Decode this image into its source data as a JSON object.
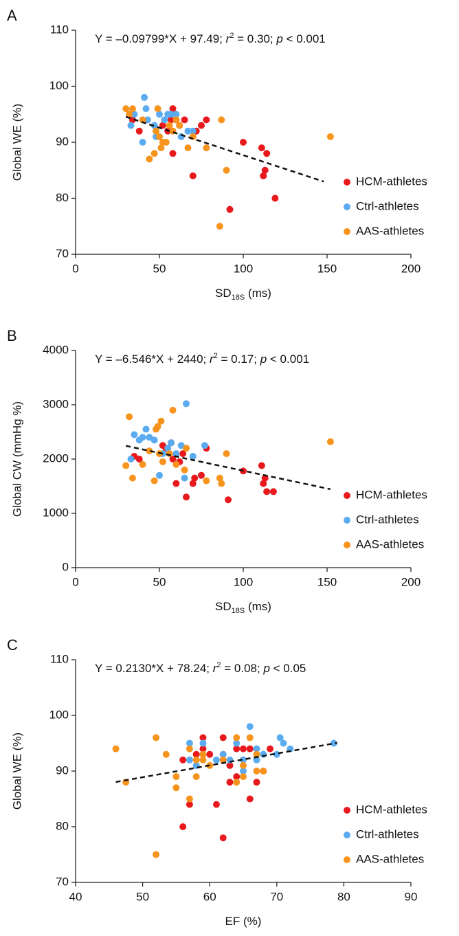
{
  "chart_data": [
    {
      "type": "scatter",
      "panel_label": "A",
      "equation_parts": [
        "Y = –0.09799*X + 97.49; ",
        "r",
        "2",
        " = 0.30; ",
        "p",
        " < 0.001"
      ],
      "xlabel_parts": [
        "SD",
        "18S",
        " (ms)"
      ],
      "ylabel": "Global WE (%)",
      "xlim": [
        0,
        200
      ],
      "ylim": [
        70,
        110
      ],
      "xticks": [
        0,
        50,
        100,
        150,
        200
      ],
      "yticks": [
        70,
        80,
        90,
        100,
        110
      ],
      "legend": "lower right",
      "trendline": {
        "slope": -0.09799,
        "intercept": 97.49,
        "x_range": [
          30,
          148
        ]
      },
      "series": [
        {
          "name": "HCM-athletes",
          "color": "#e8191c",
          "x": [
            34,
            38,
            52,
            55,
            57,
            58,
            58,
            60,
            62,
            65,
            70,
            72,
            75,
            78,
            92,
            100,
            111,
            112,
            113,
            114,
            119
          ],
          "values": [
            94,
            92,
            93,
            92,
            94,
            96,
            88,
            94,
            93,
            94,
            84,
            92,
            93,
            94,
            78,
            90,
            89,
            84,
            85,
            88,
            80
          ]
        },
        {
          "name": "Ctrl-athletes",
          "color": "#5aabf0",
          "x": [
            33,
            35,
            40,
            41,
            42,
            43,
            47,
            50,
            53,
            55,
            57,
            60,
            63,
            67,
            70,
            48
          ],
          "values": [
            93,
            95,
            90,
            98,
            96,
            94,
            93,
            95,
            94,
            95,
            95,
            95,
            91,
            92,
            92,
            91
          ]
        },
        {
          "name": "AAS-athletes",
          "color": "#f7941d",
          "x": [
            30,
            32,
            34,
            40,
            44,
            47,
            48,
            49,
            50,
            51,
            52,
            54,
            56,
            58,
            60,
            62,
            67,
            70,
            78,
            86,
            87,
            90,
            152
          ],
          "values": [
            96,
            95,
            96,
            94,
            87,
            88,
            92,
            96,
            91,
            89,
            90,
            90,
            93,
            92,
            94,
            93,
            89,
            91,
            89,
            75,
            94,
            85,
            91
          ]
        }
      ]
    },
    {
      "type": "scatter",
      "panel_label": "B",
      "equation_parts": [
        "Y = –6.546*X + 2440; ",
        "r",
        "2",
        " = 0.17; ",
        "p",
        " < 0.001"
      ],
      "xlabel_parts": [
        "SD",
        "18S",
        " (ms)"
      ],
      "ylabel": "Global CW (mmHg %)",
      "xlim": [
        0,
        200
      ],
      "ylim": [
        0,
        4000
      ],
      "xticks": [
        0,
        50,
        100,
        150,
        200
      ],
      "yticks": [
        0,
        1000,
        2000,
        3000,
        4000
      ],
      "legend": "lower right",
      "trendline": {
        "slope": -6.546,
        "intercept": 2440,
        "x_range": [
          30,
          152
        ]
      },
      "series": [
        {
          "name": "HCM-athletes",
          "color": "#e8191c",
          "x": [
            35,
            38,
            52,
            54,
            57,
            58,
            60,
            62,
            64,
            66,
            70,
            71,
            75,
            78,
            91,
            100,
            111,
            112,
            113,
            114,
            118
          ],
          "values": [
            2050,
            2000,
            2250,
            2200,
            2300,
            2000,
            1550,
            1950,
            2100,
            1300,
            1550,
            1650,
            1700,
            2200,
            1250,
            1780,
            1880,
            1550,
            1650,
            1400,
            1400
          ]
        },
        {
          "name": "Ctrl-athletes",
          "color": "#5aabf0",
          "x": [
            33,
            35,
            38,
            40,
            42,
            44,
            47,
            50,
            52,
            55,
            57,
            60,
            63,
            65,
            66,
            70,
            77
          ],
          "values": [
            2000,
            2450,
            2350,
            2400,
            2550,
            2400,
            2350,
            1700,
            2100,
            2200,
            2300,
            2100,
            2250,
            1650,
            3020,
            2050,
            2250
          ]
        },
        {
          "name": "AAS-athletes",
          "color": "#f7941d",
          "x": [
            30,
            32,
            34,
            40,
            44,
            47,
            48,
            49,
            50,
            51,
            52,
            56,
            58,
            60,
            65,
            66,
            78,
            86,
            87,
            90,
            152
          ],
          "values": [
            1880,
            2780,
            1650,
            1900,
            2150,
            1600,
            2550,
            2600,
            2100,
            2700,
            1950,
            2100,
            2900,
            1900,
            1800,
            2200,
            1600,
            1650,
            1550,
            2100,
            2320
          ]
        }
      ]
    },
    {
      "type": "scatter",
      "panel_label": "C",
      "equation_parts": [
        "Y = 0.2130*X + 78.24; ",
        "r",
        "2",
        " = 0.08; ",
        "p",
        " < 0.05"
      ],
      "xlabel_parts": [
        "EF (%)"
      ],
      "ylabel": "Global WE (%)",
      "xlim": [
        40,
        90
      ],
      "ylim": [
        70,
        110
      ],
      "xticks": [
        40,
        50,
        60,
        70,
        80,
        90
      ],
      "yticks": [
        70,
        80,
        90,
        100,
        110
      ],
      "legend": "lower right",
      "trendline": {
        "slope": 0.213,
        "intercept": 78.24,
        "x_range": [
          46,
          79
        ]
      },
      "series": [
        {
          "name": "HCM-athletes",
          "color": "#e8191c",
          "x": [
            56,
            56,
            57,
            58,
            59,
            59,
            60,
            61,
            62,
            62,
            62,
            63,
            63,
            64,
            64,
            65,
            66,
            66,
            67,
            68,
            69
          ],
          "values": [
            80,
            92,
            84,
            93,
            96,
            94,
            93,
            84,
            78,
            96,
            93,
            88,
            91,
            94,
            89,
            94,
            85,
            94,
            88,
            90,
            94
          ]
        },
        {
          "name": "Ctrl-athletes",
          "color": "#5aabf0",
          "x": [
            57,
            57,
            58,
            59,
            61,
            62,
            63,
            64,
            65,
            65,
            66,
            67,
            67,
            68,
            70,
            70.5,
            71,
            72,
            78.5
          ],
          "values": [
            95,
            92,
            91,
            95,
            92,
            93,
            92,
            95,
            90,
            92,
            98,
            94,
            92,
            93,
            93,
            96,
            95,
            94,
            95
          ]
        },
        {
          "name": "AAS-athletes",
          "color": "#f7941d",
          "x": [
            46,
            47.5,
            52,
            52,
            53.5,
            55,
            55,
            57,
            57,
            58,
            58,
            59,
            59,
            60,
            62,
            64,
            64,
            65,
            65,
            66,
            67,
            67,
            68
          ],
          "values": [
            94,
            88,
            75,
            96,
            93,
            89,
            87,
            85,
            94,
            89,
            92,
            93,
            92,
            91,
            92,
            96,
            88,
            89,
            91,
            96,
            90,
            93,
            90
          ]
        }
      ]
    }
  ]
}
